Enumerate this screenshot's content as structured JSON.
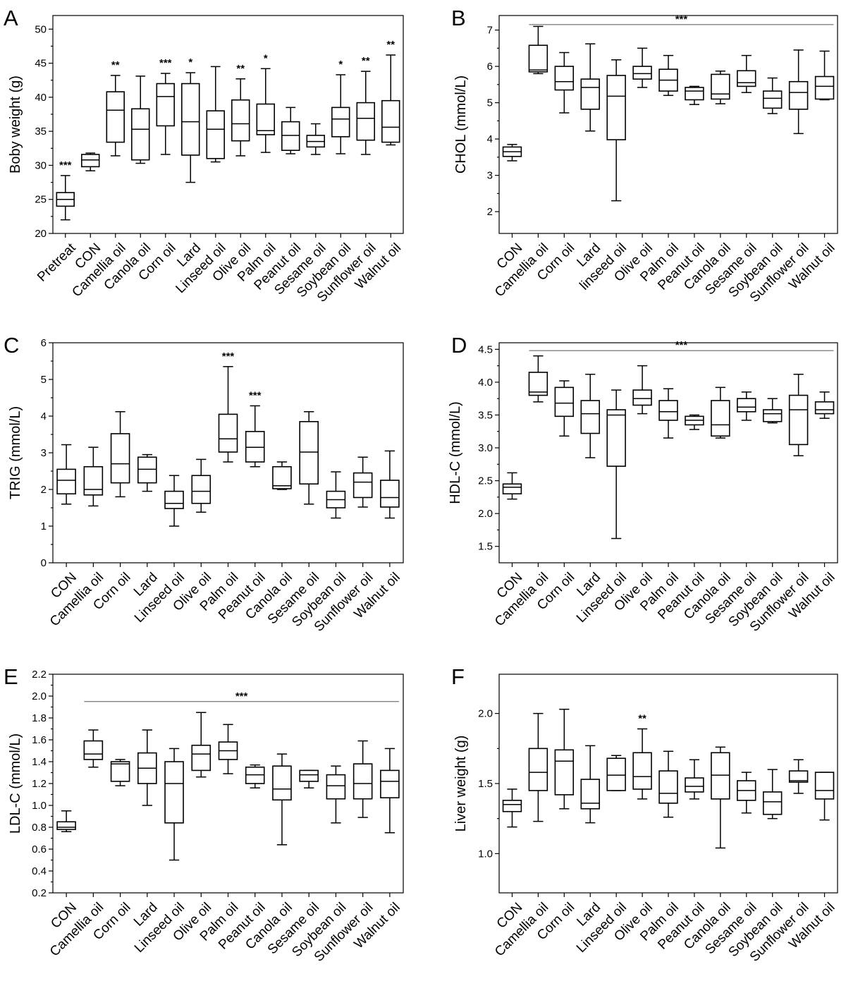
{
  "chart_data": [
    {
      "type": "box",
      "panel": "A",
      "ylabel": "Boby weight (g)",
      "ylim": [
        20,
        52
      ],
      "yticks": [
        20,
        25,
        30,
        35,
        40,
        45,
        50
      ],
      "categories": [
        "Pretreat",
        "CON",
        "Camellia oil",
        "Canola oil",
        "Corn oil",
        "Lard",
        "Linseed oil",
        "Olive oil",
        "Palm oil",
        "Peanut oil",
        "Sesame oil",
        "Soybean oil",
        "Sunflower oil",
        "Walnut oil"
      ],
      "boxes": [
        {
          "min": 22,
          "q1": 24,
          "median": 25,
          "q3": 26,
          "max": 28.5
        },
        {
          "min": 29.2,
          "q1": 29.8,
          "median": 30.8,
          "q3": 31.6,
          "max": 31.8
        },
        {
          "min": 31.4,
          "q1": 33.4,
          "median": 38.1,
          "q3": 40.8,
          "max": 43.2
        },
        {
          "min": 30.3,
          "q1": 30.8,
          "median": 35.3,
          "q3": 38.3,
          "max": 43.1
        },
        {
          "min": 31.6,
          "q1": 35.8,
          "median": 40.1,
          "q3": 42,
          "max": 43.5
        },
        {
          "min": 27.5,
          "q1": 31.5,
          "median": 36.4,
          "q3": 42,
          "max": 43.6
        },
        {
          "min": 30.5,
          "q1": 31.0,
          "median": 35.3,
          "q3": 38.0,
          "max": 44.5
        },
        {
          "min": 31.4,
          "q1": 33.6,
          "median": 36.1,
          "q3": 39.6,
          "max": 42.7
        },
        {
          "min": 31.9,
          "q1": 34.5,
          "median": 35.1,
          "q3": 39.0,
          "max": 44.2
        },
        {
          "min": 31.7,
          "q1": 32.2,
          "median": 34.4,
          "q3": 36.4,
          "max": 38.5
        },
        {
          "min": 31.6,
          "q1": 32.7,
          "median": 33.5,
          "q3": 34.4,
          "max": 36.1
        },
        {
          "min": 31.7,
          "q1": 34.2,
          "median": 36.8,
          "q3": 38.5,
          "max": 43.3
        },
        {
          "min": 31.6,
          "q1": 33.7,
          "median": 36.9,
          "q3": 39.2,
          "max": 43.8
        },
        {
          "min": 33.0,
          "q1": 33.4,
          "median": 35.6,
          "q3": 39.5,
          "max": 46.2
        }
      ],
      "annotations": [
        "***",
        "",
        "**",
        "",
        "***",
        "*",
        "",
        "**",
        "*",
        "",
        "",
        "*",
        "**",
        "**"
      ]
    },
    {
      "type": "box",
      "panel": "B",
      "ylabel": "CHOL (mmol/L)",
      "ylim": [
        1.4,
        7.4
      ],
      "yticks": [
        2,
        3,
        4,
        5,
        6,
        7
      ],
      "categories": [
        "CON",
        "Camellia oil",
        "Corn oil",
        "Lard",
        "linseed oil",
        "Olive oil",
        "Palm oil",
        "Peanut oil",
        "Canola oil",
        "Sesame oil",
        "Soybean oil",
        "Sunflower oil",
        "Walnut oil"
      ],
      "boxes": [
        {
          "min": 3.4,
          "q1": 3.52,
          "median": 3.65,
          "q3": 3.78,
          "max": 3.85
        },
        {
          "min": 5.8,
          "q1": 5.85,
          "median": 5.9,
          "q3": 6.58,
          "max": 7.1
        },
        {
          "min": 4.72,
          "q1": 5.35,
          "median": 5.58,
          "q3": 6.0,
          "max": 6.38
        },
        {
          "min": 4.22,
          "q1": 4.82,
          "median": 5.42,
          "q3": 5.65,
          "max": 6.62
        },
        {
          "min": 2.3,
          "q1": 3.98,
          "median": 5.18,
          "q3": 5.75,
          "max": 6.18
        },
        {
          "min": 5.42,
          "q1": 5.65,
          "median": 5.8,
          "q3": 6.0,
          "max": 6.5
        },
        {
          "min": 5.2,
          "q1": 5.32,
          "median": 5.62,
          "q3": 5.92,
          "max": 6.3
        },
        {
          "min": 4.95,
          "q1": 5.08,
          "median": 5.32,
          "q3": 5.42,
          "max": 5.45
        },
        {
          "min": 4.97,
          "q1": 5.1,
          "median": 5.24,
          "q3": 5.78,
          "max": 5.87
        },
        {
          "min": 5.28,
          "q1": 5.45,
          "median": 5.55,
          "q3": 5.88,
          "max": 6.3
        },
        {
          "min": 4.7,
          "q1": 4.85,
          "median": 5.12,
          "q3": 5.32,
          "max": 5.68
        },
        {
          "min": 4.15,
          "q1": 4.82,
          "median": 5.28,
          "q3": 5.58,
          "max": 6.45
        },
        {
          "min": 5.08,
          "q1": 5.1,
          "median": 5.45,
          "q3": 5.72,
          "max": 6.42
        }
      ],
      "significance_bar": {
        "label": "***",
        "y": 7.15,
        "from_category": 1,
        "to_category": 12
      }
    },
    {
      "type": "box",
      "panel": "C",
      "ylabel": "TRIG (mmol/L)",
      "ylim": [
        0,
        6
      ],
      "yticks": [
        0,
        1,
        2,
        3,
        4,
        5,
        6
      ],
      "categories": [
        "CON",
        "Camellia oil",
        "Corn oil",
        "Lard",
        "Linseed oil",
        "Olive oil",
        "Palm oil",
        "Peanut oil",
        "Canola oil",
        "Sesame oil",
        "Soybean oil",
        "Sunflower oil",
        "Walnut oil"
      ],
      "boxes": [
        {
          "min": 1.6,
          "q1": 1.88,
          "median": 2.25,
          "q3": 2.55,
          "max": 3.22
        },
        {
          "min": 1.55,
          "q1": 1.85,
          "median": 2.0,
          "q3": 2.62,
          "max": 3.15
        },
        {
          "min": 1.8,
          "q1": 2.18,
          "median": 2.7,
          "q3": 3.52,
          "max": 4.12
        },
        {
          "min": 1.95,
          "q1": 2.18,
          "median": 2.55,
          "q3": 2.88,
          "max": 2.95
        },
        {
          "min": 1.0,
          "q1": 1.48,
          "median": 1.62,
          "q3": 1.95,
          "max": 2.38
        },
        {
          "min": 1.38,
          "q1": 1.62,
          "median": 1.95,
          "q3": 2.38,
          "max": 2.82
        },
        {
          "min": 2.75,
          "q1": 3.02,
          "median": 3.38,
          "q3": 4.05,
          "max": 5.35
        },
        {
          "min": 2.62,
          "q1": 2.75,
          "median": 3.15,
          "q3": 3.58,
          "max": 4.28
        },
        {
          "min": 2.0,
          "q1": 2.02,
          "median": 2.1,
          "q3": 2.62,
          "max": 2.75
        },
        {
          "min": 1.6,
          "q1": 2.15,
          "median": 3.02,
          "q3": 3.85,
          "max": 4.12
        },
        {
          "min": 1.22,
          "q1": 1.5,
          "median": 1.72,
          "q3": 1.95,
          "max": 2.48
        },
        {
          "min": 1.52,
          "q1": 1.78,
          "median": 2.2,
          "q3": 2.45,
          "max": 2.88
        },
        {
          "min": 1.22,
          "q1": 1.52,
          "median": 1.78,
          "q3": 2.25,
          "max": 3.05
        }
      ],
      "annotations": [
        "",
        "",
        "",
        "",
        "",
        "",
        "***",
        "***",
        "",
        "",
        "",
        "",
        ""
      ]
    },
    {
      "type": "box",
      "panel": "D",
      "ylabel": "HDL-C (mmol/L)",
      "ylim": [
        1.25,
        4.6
      ],
      "yticks": [
        1.5,
        2.0,
        2.5,
        3.0,
        3.5,
        4.0,
        4.5
      ],
      "categories": [
        "CON",
        "Camellia oil",
        "Corn oil",
        "Lard",
        "Linseed oil",
        "Olive oil",
        "Palm oil",
        "Peanut oil",
        "Canola oil",
        "Sesame oil",
        "Soybean oil",
        "Sunflower oil",
        "Walnut oil"
      ],
      "boxes": [
        {
          "min": 2.22,
          "q1": 2.3,
          "median": 2.4,
          "q3": 2.45,
          "max": 2.62
        },
        {
          "min": 3.7,
          "q1": 3.8,
          "median": 3.85,
          "q3": 4.15,
          "max": 4.4
        },
        {
          "min": 3.18,
          "q1": 3.48,
          "median": 3.68,
          "q3": 3.92,
          "max": 4.02
        },
        {
          "min": 2.85,
          "q1": 3.22,
          "median": 3.52,
          "q3": 3.72,
          "max": 4.12
        },
        {
          "min": 1.62,
          "q1": 2.72,
          "median": 3.5,
          "q3": 3.58,
          "max": 3.88
        },
        {
          "min": 3.52,
          "q1": 3.65,
          "median": 3.75,
          "q3": 3.88,
          "max": 4.25
        },
        {
          "min": 3.15,
          "q1": 3.42,
          "median": 3.55,
          "q3": 3.72,
          "max": 3.9
        },
        {
          "min": 3.28,
          "q1": 3.35,
          "median": 3.42,
          "q3": 3.48,
          "max": 3.5
        },
        {
          "min": 3.15,
          "q1": 3.18,
          "median": 3.35,
          "q3": 3.72,
          "max": 3.92
        },
        {
          "min": 3.42,
          "q1": 3.55,
          "median": 3.62,
          "q3": 3.75,
          "max": 3.85
        },
        {
          "min": 3.38,
          "q1": 3.4,
          "median": 3.52,
          "q3": 3.58,
          "max": 3.75
        },
        {
          "min": 2.88,
          "q1": 3.05,
          "median": 3.58,
          "q3": 3.8,
          "max": 4.12
        },
        {
          "min": 3.45,
          "q1": 3.52,
          "median": 3.58,
          "q3": 3.7,
          "max": 3.85
        }
      ],
      "significance_bar": {
        "label": "***",
        "y": 4.48,
        "from_category": 1,
        "to_category": 12
      }
    },
    {
      "type": "box",
      "panel": "E",
      "ylabel": "LDL-C (mmol/L)",
      "ylim": [
        0.2,
        2.2
      ],
      "yticks": [
        0.2,
        0.4,
        0.6,
        0.8,
        1.0,
        1.2,
        1.4,
        1.6,
        1.8,
        2.0,
        2.2
      ],
      "categories": [
        "CON",
        "Camellia oil",
        "Corn oil",
        "Lard",
        "Linseed oil",
        "Olive oil",
        "Palm oil",
        "Peanut oil",
        "Canola oil",
        "Sesame oil",
        "Soybean oil",
        "Sunflower oil",
        "Walnut oil"
      ],
      "boxes": [
        {
          "min": 0.76,
          "q1": 0.78,
          "median": 0.8,
          "q3": 0.85,
          "max": 0.95
        },
        {
          "min": 1.35,
          "q1": 1.42,
          "median": 1.47,
          "q3": 1.59,
          "max": 1.69
        },
        {
          "min": 1.18,
          "q1": 1.22,
          "median": 1.38,
          "q3": 1.4,
          "max": 1.42
        },
        {
          "min": 1.0,
          "q1": 1.2,
          "median": 1.34,
          "q3": 1.48,
          "max": 1.69
        },
        {
          "min": 0.5,
          "q1": 0.84,
          "median": 1.2,
          "q3": 1.4,
          "max": 1.52
        },
        {
          "min": 1.26,
          "q1": 1.32,
          "median": 1.47,
          "q3": 1.55,
          "max": 1.85
        },
        {
          "min": 1.29,
          "q1": 1.42,
          "median": 1.5,
          "q3": 1.58,
          "max": 1.74
        },
        {
          "min": 1.16,
          "q1": 1.2,
          "median": 1.28,
          "q3": 1.35,
          "max": 1.37
        },
        {
          "min": 0.64,
          "q1": 1.05,
          "median": 1.15,
          "q3": 1.36,
          "max": 1.47
        },
        {
          "min": 1.16,
          "q1": 1.22,
          "median": 1.28,
          "q3": 1.32,
          "max": 1.32
        },
        {
          "min": 0.84,
          "q1": 1.06,
          "median": 1.18,
          "q3": 1.28,
          "max": 1.36
        },
        {
          "min": 0.89,
          "q1": 1.06,
          "median": 1.2,
          "q3": 1.38,
          "max": 1.59
        },
        {
          "min": 0.75,
          "q1": 1.07,
          "median": 1.22,
          "q3": 1.32,
          "max": 1.52
        }
      ],
      "significance_bar": {
        "label": "***",
        "y": 1.95,
        "from_category": 1,
        "to_category": 12
      }
    },
    {
      "type": "box",
      "panel": "F",
      "ylabel": "Liver weight (g)",
      "ylim": [
        0.72,
        2.28
      ],
      "yticks": [
        1.0,
        1.5,
        2.0
      ],
      "categories": [
        "CON",
        "Camellia oil",
        "Corn oil",
        "Lard",
        "Linseed oil",
        "Olive oil",
        "Palm oil",
        "Peanut oil",
        "Canola oil",
        "Sesame oil",
        "Soybean oil",
        "Sunflower oil",
        "Walnut oil"
      ],
      "boxes": [
        {
          "min": 1.19,
          "q1": 1.3,
          "median": 1.35,
          "q3": 1.38,
          "max": 1.46
        },
        {
          "min": 1.23,
          "q1": 1.45,
          "median": 1.58,
          "q3": 1.75,
          "max": 2.0
        },
        {
          "min": 1.32,
          "q1": 1.42,
          "median": 1.66,
          "q3": 1.74,
          "max": 2.03
        },
        {
          "min": 1.22,
          "q1": 1.32,
          "median": 1.36,
          "q3": 1.53,
          "max": 1.77
        },
        {
          "min": 1.45,
          "q1": 1.45,
          "median": 1.56,
          "q3": 1.68,
          "max": 1.7
        },
        {
          "min": 1.39,
          "q1": 1.46,
          "median": 1.55,
          "q3": 1.72,
          "max": 1.89
        },
        {
          "min": 1.26,
          "q1": 1.36,
          "median": 1.43,
          "q3": 1.59,
          "max": 1.73
        },
        {
          "min": 1.39,
          "q1": 1.44,
          "median": 1.48,
          "q3": 1.54,
          "max": 1.67
        },
        {
          "min": 1.04,
          "q1": 1.39,
          "median": 1.56,
          "q3": 1.72,
          "max": 1.76
        },
        {
          "min": 1.29,
          "q1": 1.38,
          "median": 1.45,
          "q3": 1.52,
          "max": 1.58
        },
        {
          "min": 1.25,
          "q1": 1.28,
          "median": 1.37,
          "q3": 1.44,
          "max": 1.6
        },
        {
          "min": 1.43,
          "q1": 1.51,
          "median": 1.52,
          "q3": 1.59,
          "max": 1.67
        },
        {
          "min": 1.24,
          "q1": 1.39,
          "median": 1.45,
          "q3": 1.58,
          "max": 1.58
        }
      ],
      "annotations": [
        "",
        "",
        "",
        "",
        "",
        "**",
        "",
        "",
        "",
        "",
        "",
        "",
        ""
      ]
    }
  ]
}
